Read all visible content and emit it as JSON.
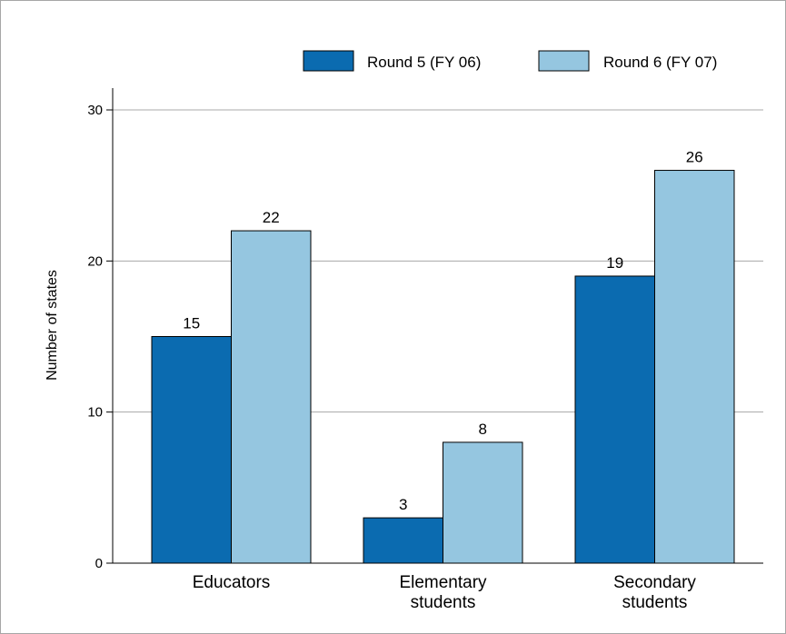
{
  "chart_data": {
    "type": "bar",
    "categories": [
      [
        "Educators"
      ],
      [
        "Elementary",
        "students"
      ],
      [
        "Secondary",
        "students"
      ]
    ],
    "series": [
      {
        "name": "Round 5 (FY 06)",
        "color": "#0b6bb0",
        "values": [
          15,
          3,
          19
        ]
      },
      {
        "name": "Round 6 (FY 07)",
        "color": "#95c6e0",
        "values": [
          22,
          8,
          26
        ]
      }
    ],
    "ylabel": "Number of states",
    "xlabel": "",
    "ylim": [
      0,
      30
    ],
    "yticks": [
      0,
      10,
      20,
      30
    ],
    "grid": true,
    "legend_position": "top-right",
    "data_labels": true
  }
}
